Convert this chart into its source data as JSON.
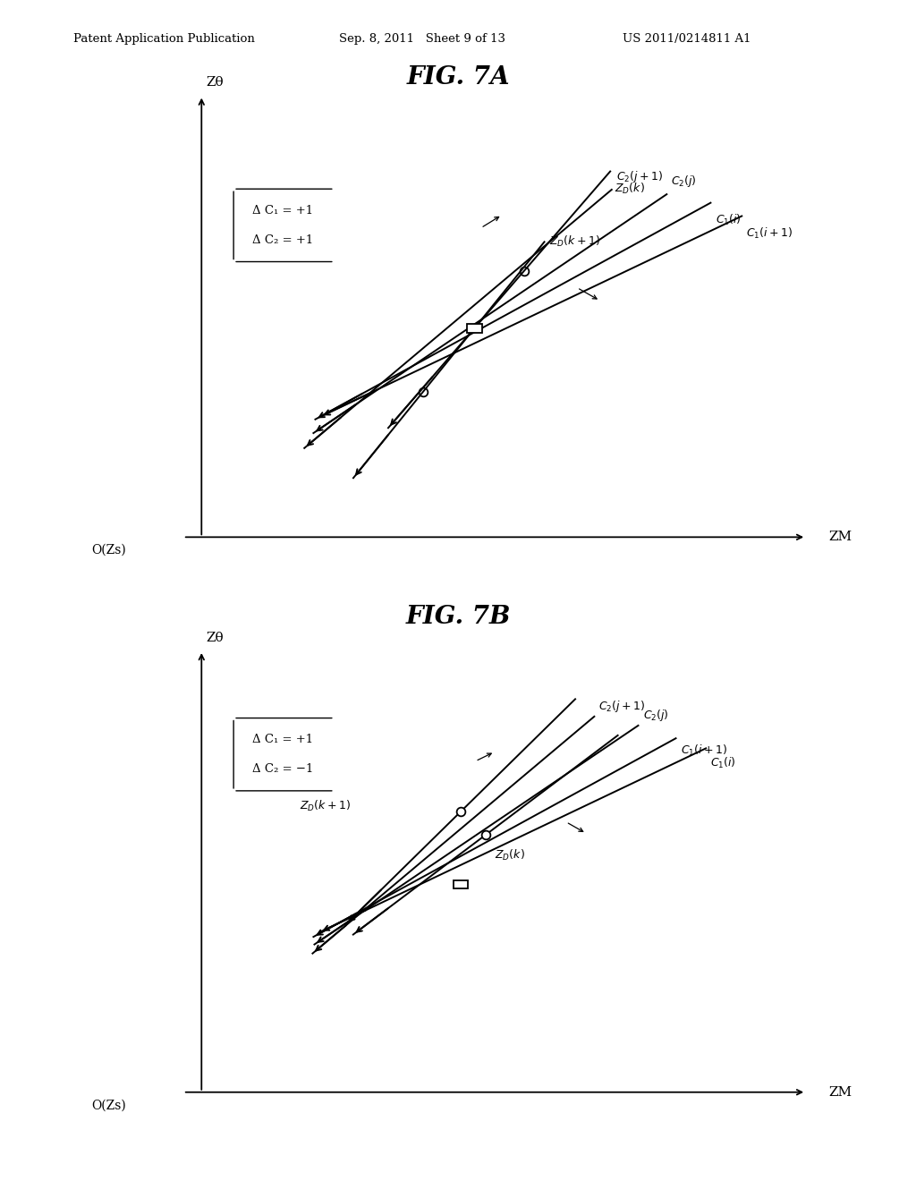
{
  "header_left": "Patent Application Publication",
  "header_mid": "Sep. 8, 2011   Sheet 9 of 13",
  "header_right": "US 2011/0214811 A1",
  "fig7a_title": "FIG. 7A",
  "fig7b_title": "FIG. 7B",
  "background_color": "#ffffff",
  "line_color": "#000000"
}
